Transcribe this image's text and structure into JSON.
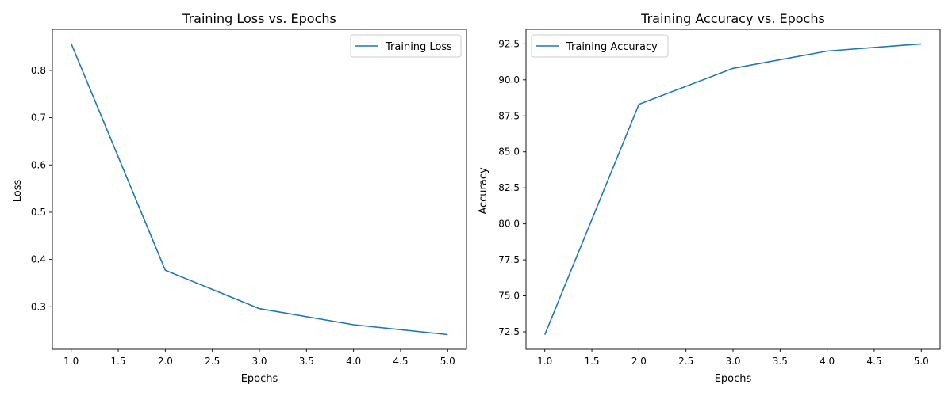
{
  "chart_data": [
    {
      "type": "line",
      "title": "Training Loss vs. Epochs",
      "xlabel": "Epochs",
      "ylabel": "Loss",
      "x": [
        1,
        2,
        3,
        4,
        5
      ],
      "series": [
        {
          "name": "Training Loss",
          "values": [
            0.857,
            0.377,
            0.296,
            0.262,
            0.241
          ],
          "color": "#1f77b4"
        }
      ],
      "xlim": [
        0.8,
        5.2
      ],
      "ylim": [
        0.21,
        0.887
      ],
      "xticks": [
        "1.0",
        "1.5",
        "2.0",
        "2.5",
        "3.0",
        "3.5",
        "4.0",
        "4.5",
        "5.0"
      ],
      "yticks": [
        "0.3",
        "0.4",
        "0.5",
        "0.6",
        "0.7",
        "0.8"
      ],
      "legend_position": "upper right",
      "grid": false
    },
    {
      "type": "line",
      "title": "Training Accuracy vs. Epochs",
      "xlabel": "Epochs",
      "ylabel": "Accuracy",
      "x": [
        1,
        2,
        3,
        4,
        5
      ],
      "series": [
        {
          "name": "Training Accuracy",
          "values": [
            72.3,
            88.3,
            90.8,
            92.0,
            92.5
          ],
          "color": "#1f77b4"
        }
      ],
      "xlim": [
        0.8,
        5.2
      ],
      "ylim": [
        71.29,
        93.51
      ],
      "xticks": [
        "1.0",
        "1.5",
        "2.0",
        "2.5",
        "3.0",
        "3.5",
        "4.0",
        "4.5",
        "5.0"
      ],
      "yticks": [
        "72.5",
        "75.0",
        "77.5",
        "80.0",
        "82.5",
        "85.0",
        "87.5",
        "90.0",
        "92.5"
      ],
      "legend_position": "upper left",
      "grid": false
    }
  ]
}
